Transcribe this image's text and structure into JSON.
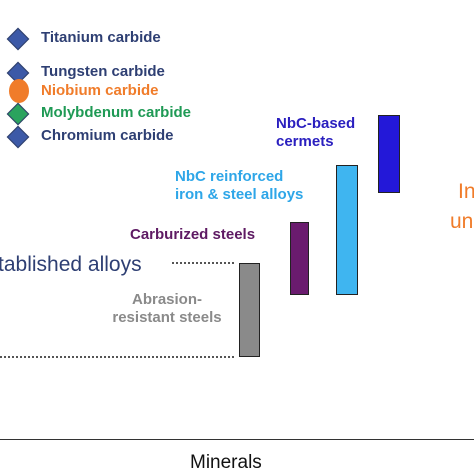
{
  "legend": {
    "items": [
      {
        "label": "Titanium carbide",
        "text_color": "#2e3f73",
        "marker_color": "#3c59a7",
        "marker": "diamond-icon"
      },
      {
        "label": "Tungsten carbide",
        "text_color": "#2e3f73",
        "marker_color": "#3c59a7",
        "marker": "diamond-icon"
      },
      {
        "label": "Niobium carbide",
        "text_color": "#f07c2a",
        "marker_color": "#f07c2a",
        "marker": "circle-icon"
      },
      {
        "label": "Molybdenum carbide",
        "text_color": "#1f9a55",
        "marker_color": "#2aa35e",
        "marker": "diamond-icon"
      },
      {
        "label": "Chromium carbide",
        "text_color": "#2e3f73",
        "marker_color": "#3c59a7",
        "marker": "diamond-icon"
      }
    ]
  },
  "chart_data": {
    "type": "bar",
    "categories": [
      "Abrasion-resistant steels",
      "Carburized steels",
      "NbC reinforced iron & steel alloys",
      "NbC-based cermets"
    ],
    "bars": [
      {
        "label": "Abrasion-\nresistant steels",
        "color": "#8a8a8a",
        "label_color": "#8a8a8a"
      },
      {
        "label": "Carburized steels",
        "color": "#6a1b6e",
        "label_color": "#5e1a63"
      },
      {
        "label": "NbC reinforced\niron & steel alloys",
        "color": "#3fb5f0",
        "label_color": "#2ea6e8"
      },
      {
        "label": "NbC-based\ncermets",
        "color": "#2318d8",
        "label_color": "#2a1fbf"
      }
    ],
    "annotations": {
      "established": "tablished alloys",
      "right_partial_1": "In",
      "right_partial_2": "un"
    },
    "xlabel": "Minerals"
  }
}
